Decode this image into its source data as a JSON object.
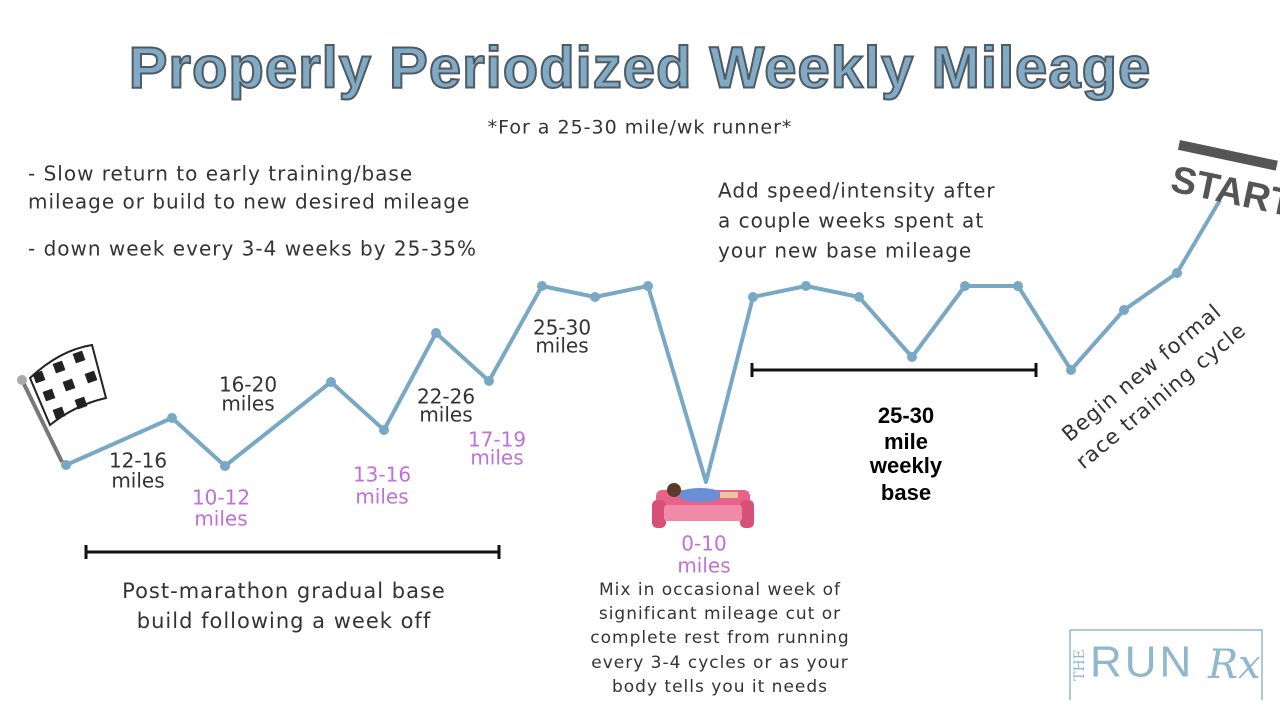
{
  "header": {
    "title": "Properly Periodized Weekly Mileage",
    "subtitle": "*For a 25-30 mile/wk runner*"
  },
  "left_notes": [
    "- Slow return to early training/base",
    "mileage or build to new desired mileage",
    "- down week every 3-4 weeks by 25-35%"
  ],
  "speed_note": [
    "Add speed/intensity after",
    "a couple weeks spent at",
    "your new base mileage"
  ],
  "peak_labels": [
    [
      "12-16",
      "miles"
    ],
    [
      "16-20",
      "miles"
    ],
    [
      "22-26",
      "miles"
    ],
    [
      "25-30",
      "miles"
    ]
  ],
  "trough_labels": [
    [
      "10-12",
      "miles"
    ],
    [
      "13-16",
      "miles"
    ],
    [
      "17-19",
      "miles"
    ],
    [
      "0-10",
      "miles"
    ]
  ],
  "base_label": [
    "25-30",
    "mile",
    "weekly",
    "base"
  ],
  "phase_caption": [
    "Post-marathon gradual base",
    "build following a week off"
  ],
  "rest_caption": [
    "Mix in occasional week of",
    "significant mileage cut or",
    "complete rest from running",
    "every 3-4 cycles or as your",
    "body tells you it needs"
  ],
  "cycle_caption": [
    "Begin new formal",
    "race training cycle"
  ],
  "start_sign": "START",
  "logo": {
    "the": "THE",
    "run": "RUN",
    "rx": "Rx"
  }
}
